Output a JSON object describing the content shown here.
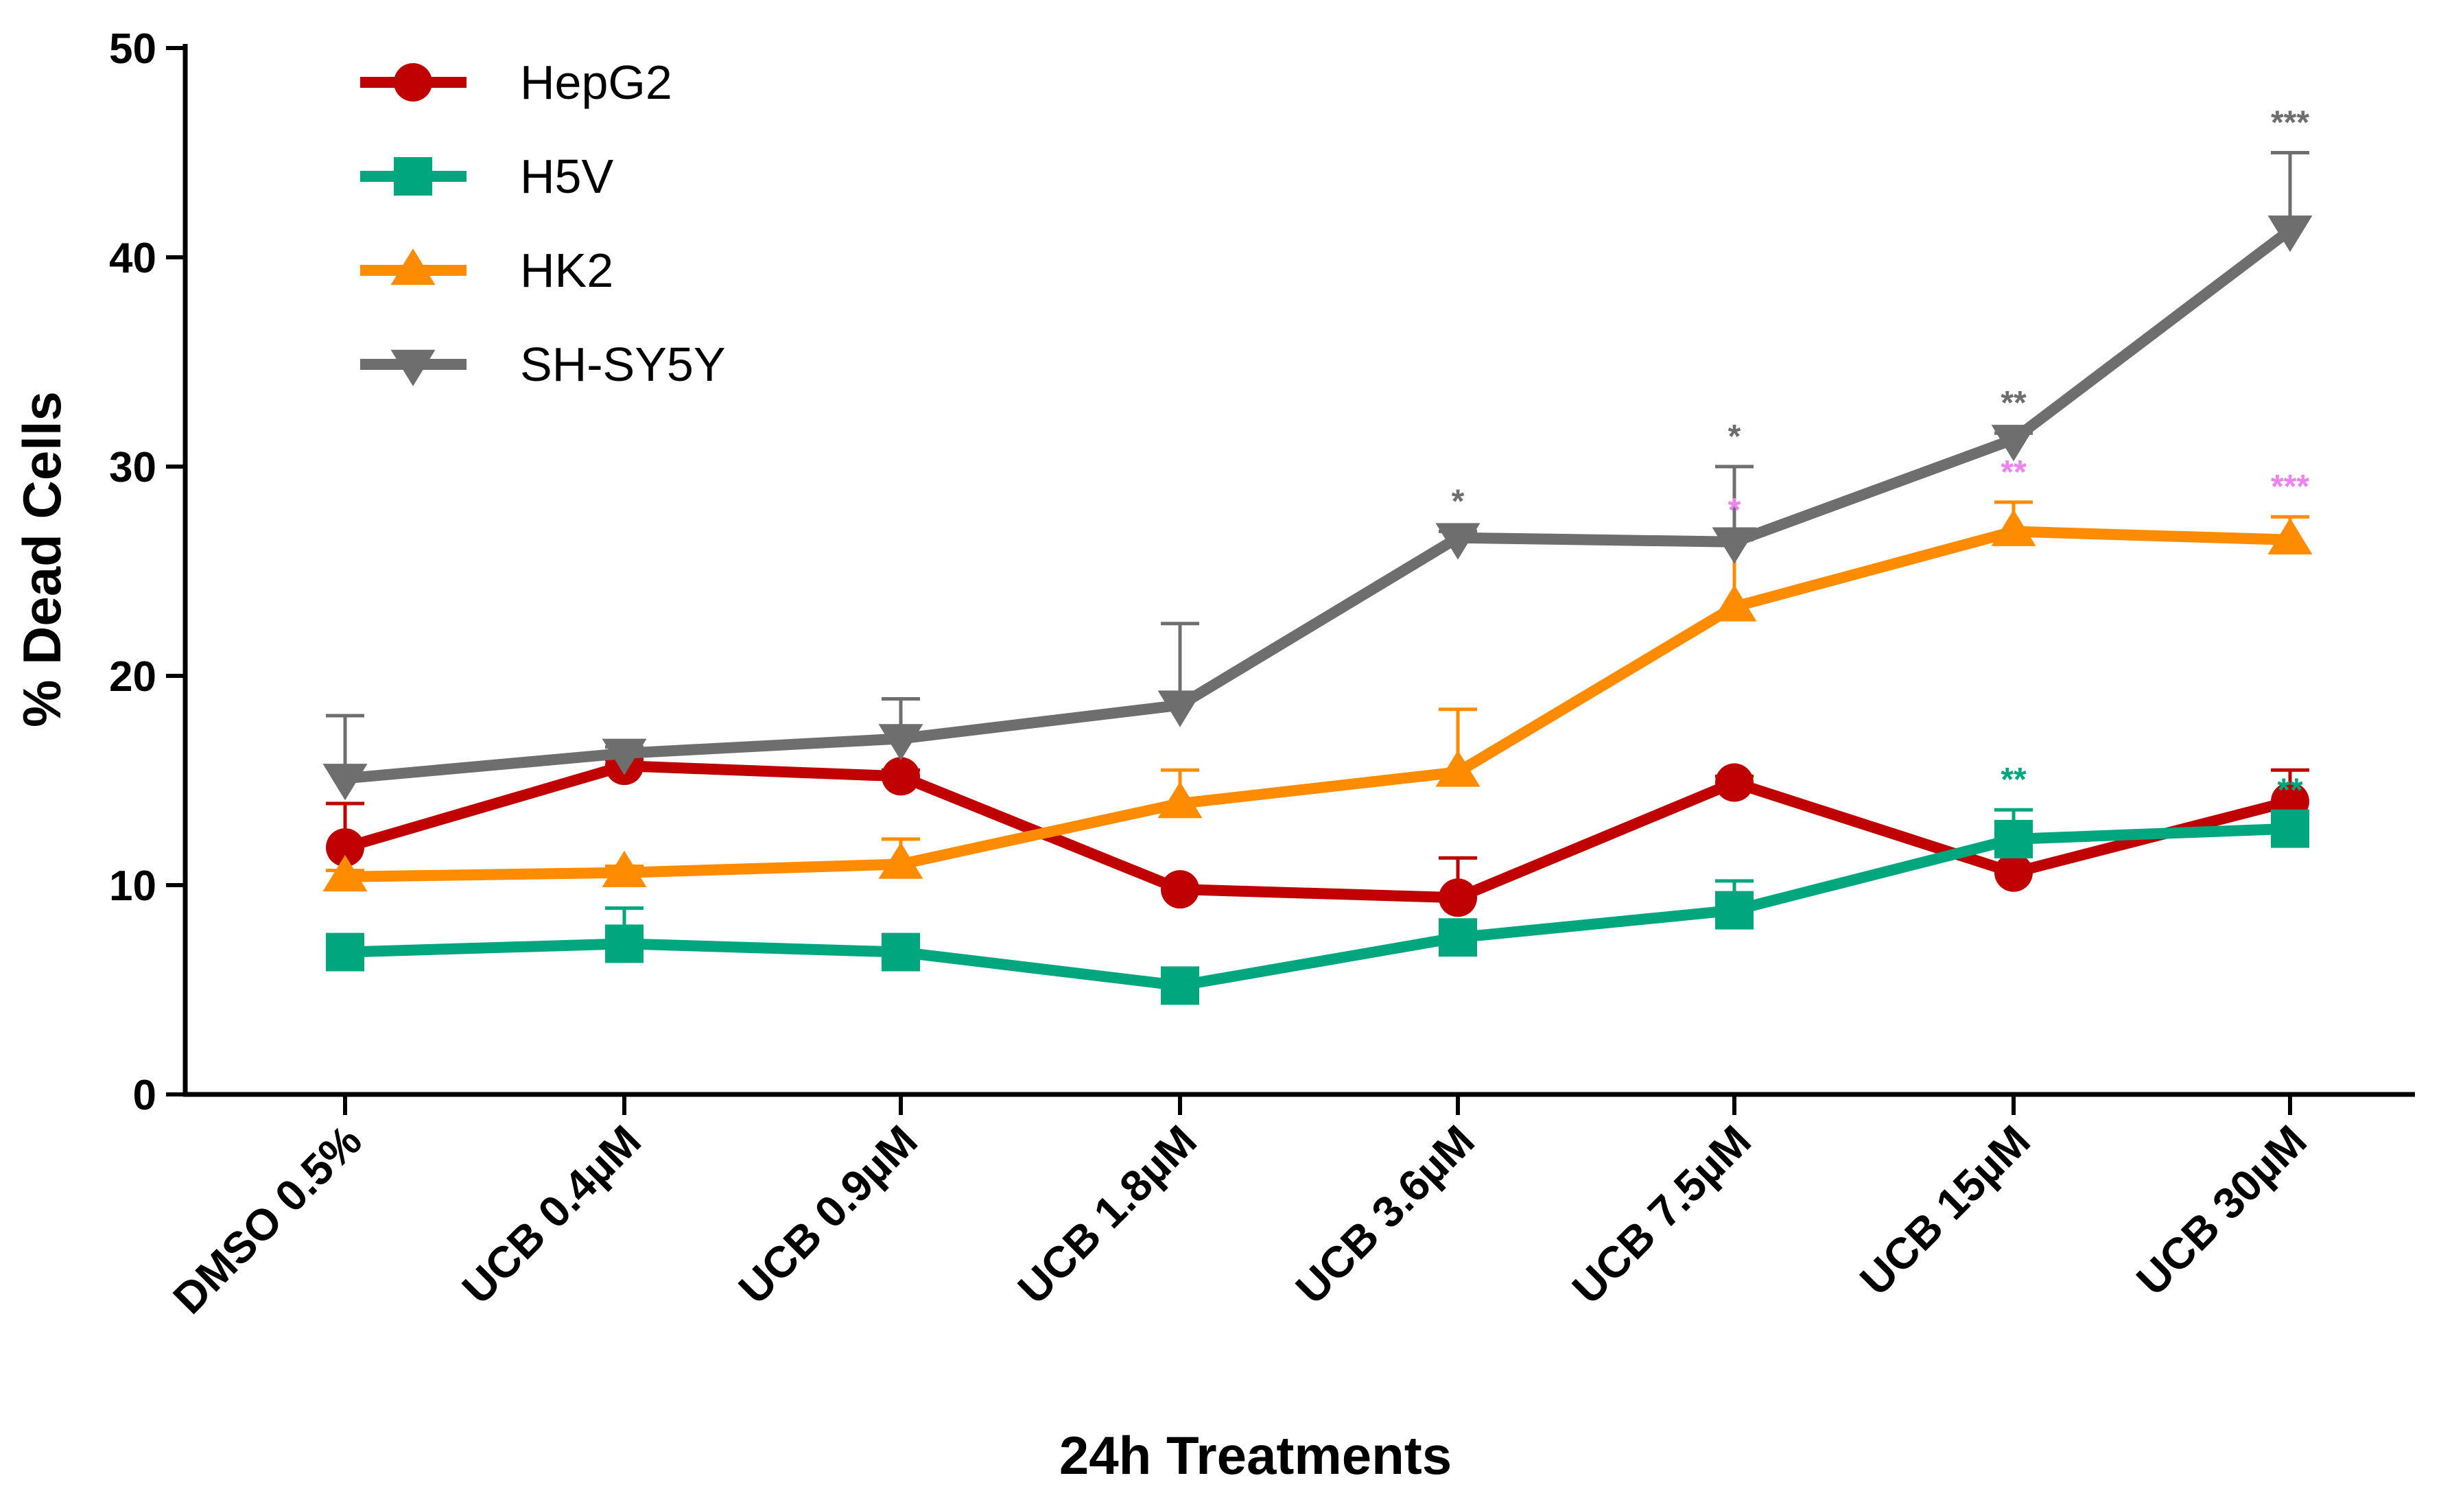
{
  "chart_data": {
    "type": "line",
    "xlabel": "24h Treatments",
    "ylabel": "% Dead Cells",
    "categories": [
      "DMSO 0.5%",
      "UCB 0.4µM",
      "UCB 0.9µM",
      "UCB 1.8µM",
      "UCB 3.6µM",
      "UCB 7.5µM",
      "UCB 15µM",
      "UCB 30µM"
    ],
    "ylim": [
      0,
      50
    ],
    "yticks": [
      0,
      10,
      20,
      30,
      40,
      50
    ],
    "legend_position": "top-left",
    "grid": false,
    "series": [
      {
        "name": "HepG2",
        "color": "#c00000",
        "marker": "circle",
        "values": [
          11.8,
          15.7,
          15.2,
          9.8,
          9.4,
          14.9,
          10.6,
          14.0
        ],
        "error": [
          2.1,
          0.3,
          0.3,
          0.2,
          1.9,
          0.3,
          0.3,
          1.5
        ],
        "significance": [
          "",
          "",
          "",
          "",
          "",
          "",
          "",
          ""
        ]
      },
      {
        "name": "H5V",
        "color": "#00a67e",
        "marker": "square",
        "values": [
          6.8,
          7.2,
          6.8,
          5.2,
          7.5,
          8.8,
          12.2,
          12.7
        ],
        "error": [
          0.2,
          1.7,
          0.2,
          0.2,
          0.4,
          1.4,
          1.4,
          0.4
        ],
        "significance": [
          "",
          "",
          "",
          "",
          "",
          "",
          "**",
          "**"
        ]
      },
      {
        "name": "HK2",
        "color": "#ff8c00",
        "marker": "triangle-up",
        "values": [
          10.4,
          10.6,
          11.0,
          13.9,
          15.4,
          23.3,
          26.9,
          26.5
        ],
        "error": [
          0.3,
          0.3,
          1.2,
          1.6,
          3.0,
          3.2,
          1.4,
          1.1
        ],
        "significance": [
          "",
          "",
          "",
          "",
          "",
          "*",
          "**",
          "***"
        ]
      },
      {
        "name": "SH-SY5Y",
        "color": "#6e6e6e",
        "marker": "triangle-down",
        "values": [
          15.1,
          16.3,
          17.0,
          18.6,
          26.6,
          26.4,
          31.3,
          41.3
        ],
        "error": [
          3.0,
          0.3,
          1.9,
          3.9,
          0.3,
          3.6,
          0.3,
          3.7
        ],
        "significance": [
          "",
          "",
          "",
          "",
          "*",
          "*",
          "**",
          "***"
        ]
      }
    ],
    "significance_colors": {
      "SH-SY5Y": "#6e6e6e",
      "HK2": "#ee82ee",
      "H5V": "#00a67e"
    }
  }
}
